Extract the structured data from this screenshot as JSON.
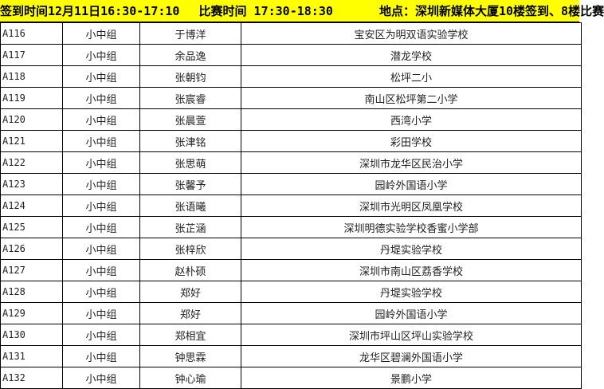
{
  "banner": {
    "checkin": "签到时间12月11日16:30-17:10",
    "match": "比赛时间 17:30-18:30",
    "location": "地点：深圳新媒体大厦10楼签到、8楼比赛"
  },
  "rows": [
    {
      "id": "A116",
      "group": "小中组",
      "name": "于博洋",
      "school": "宝安区为明双语实验学校"
    },
    {
      "id": "A117",
      "group": "小中组",
      "name": "余品逸",
      "school": "潜龙学校"
    },
    {
      "id": "A118",
      "group": "小中组",
      "name": "张朝钧",
      "school": "松坪二小"
    },
    {
      "id": "A119",
      "group": "小中组",
      "name": "张宸睿",
      "school": "南山区松坪第二小学"
    },
    {
      "id": "A120",
      "group": "小中组",
      "name": "张晨萱",
      "school": "西湾小学"
    },
    {
      "id": "A121",
      "group": "小中组",
      "name": "张津铭",
      "school": "彩田学校"
    },
    {
      "id": "A122",
      "group": "小中组",
      "name": "张思萌",
      "school": "深圳市龙华区民治小学"
    },
    {
      "id": "A123",
      "group": "小中组",
      "name": "张馨予",
      "school": "园岭外国语小学"
    },
    {
      "id": "A124",
      "group": "小中组",
      "name": "张语曦",
      "school": "深圳市光明区凤凰学校"
    },
    {
      "id": "A125",
      "group": "小中组",
      "name": "张芷涵",
      "school": "深圳明德实验学校香蜜小学部"
    },
    {
      "id": "A126",
      "group": "小中组",
      "name": "张梓欣",
      "school": "丹堤实验学校"
    },
    {
      "id": "A127",
      "group": "小中组",
      "name": "赵朴硕",
      "school": "深圳市南山区荔香学校"
    },
    {
      "id": "A128",
      "group": "小中组",
      "name": "郑好",
      "school": "丹堤实验学校"
    },
    {
      "id": "A129",
      "group": "小中组",
      "name": "郑好",
      "school": "园岭外国语小学"
    },
    {
      "id": "A130",
      "group": "小中组",
      "name": "郑相宜",
      "school": "深圳市坪山区坪山实验学校"
    },
    {
      "id": "A131",
      "group": "小中组",
      "name": "钟思霖",
      "school": "龙华区碧澜外国语小学"
    },
    {
      "id": "A132",
      "group": "小中组",
      "name": "钟心瑜",
      "school": "景鹏小学"
    }
  ]
}
